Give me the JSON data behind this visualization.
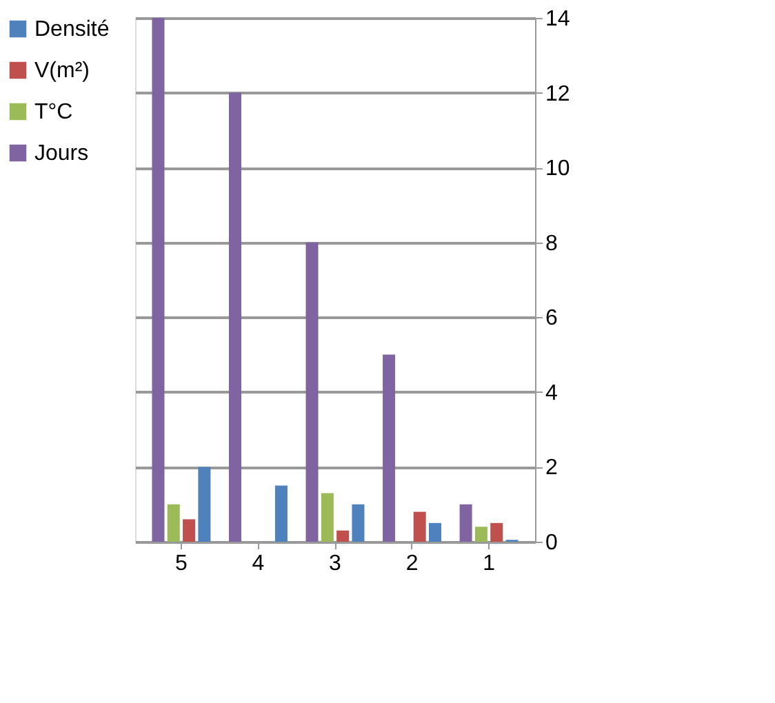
{
  "chart_data": {
    "type": "bar",
    "categories": [
      "5",
      "4",
      "3",
      "2",
      "1"
    ],
    "series": [
      {
        "name": "Densité",
        "color": "#4f81bd",
        "values": [
          2,
          1.5,
          1,
          0.5,
          0.05
        ]
      },
      {
        "name": "V(m²)",
        "color": "#c0504d",
        "values": [
          0.6,
          0,
          0.3,
          0.8,
          0.5
        ]
      },
      {
        "name": "T°C",
        "color": "#9bbb59",
        "values": [
          1,
          0,
          1.3,
          0,
          0.4
        ]
      },
      {
        "name": "Jours",
        "color": "#8064a2",
        "values": [
          14,
          12,
          8,
          5,
          1
        ]
      }
    ],
    "ylim": [
      0,
      14
    ],
    "yticks": [
      0,
      2,
      4,
      6,
      8,
      10,
      12,
      14
    ],
    "grid": "y",
    "legend": "left"
  }
}
